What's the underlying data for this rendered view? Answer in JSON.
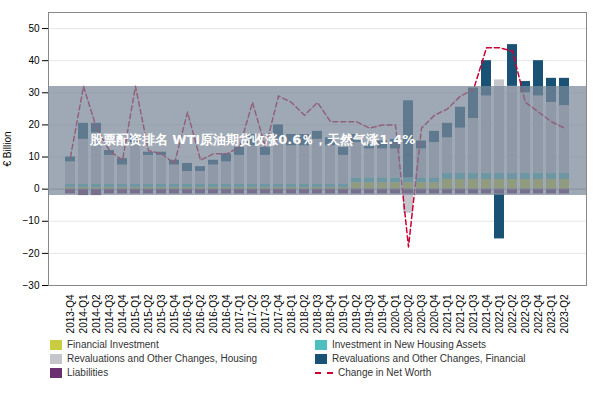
{
  "chart_data": {
    "type": "bar",
    "stacked": true,
    "ylabel": "€ Billion",
    "annotation": "股票配资排名 WTI原油期货收涨0.6％，天然气涨1.4%",
    "categories": [
      "2013-Q4",
      "2014-Q1",
      "2014-Q2",
      "2014-Q3",
      "2014-Q4",
      "2015-Q1",
      "2015-Q2",
      "2015-Q3",
      "2015-Q4",
      "2016-Q1",
      "2016-Q2",
      "2016-Q3",
      "2016-Q4",
      "2017-Q1",
      "2017-Q2",
      "2017-Q3",
      "2017-Q4",
      "2018-Q1",
      "2018-Q2",
      "2018-Q3",
      "2018-Q4",
      "2019-Q1",
      "2019-Q2",
      "2019-Q3",
      "2019-Q4",
      "2020-Q1",
      "2020-Q2",
      "2020-Q3",
      "2020-Q4",
      "2021-Q1",
      "2021-Q2",
      "2021-Q3",
      "2021-Q4",
      "2022-Q1",
      "2022-Q2",
      "2022-Q3",
      "2022-Q4",
      "2023-Q1",
      "2023-Q2"
    ],
    "series": [
      {
        "name": "Financial Investment",
        "type": "bar",
        "color": "#c8cc3f",
        "values": [
          0.5,
          0.5,
          0.5,
          0.5,
          0.5,
          0.5,
          0.5,
          0.5,
          0.5,
          0.5,
          0.5,
          0.5,
          0.5,
          0.5,
          0.5,
          0.5,
          0.5,
          0.5,
          0.5,
          0.5,
          0.5,
          0.5,
          2.0,
          2.0,
          2.0,
          2.0,
          2.0,
          2.0,
          2.0,
          3.0,
          3.0,
          3.0,
          3.0,
          3.0,
          3.0,
          3.0,
          3.0,
          3.0,
          3.0
        ]
      },
      {
        "name": "Investment in New Housing Assets",
        "type": "bar",
        "color": "#4dbfbf",
        "values": [
          1.0,
          1.0,
          1.0,
          1.0,
          1.0,
          1.0,
          1.0,
          1.0,
          1.0,
          1.0,
          1.0,
          1.0,
          1.0,
          1.0,
          1.0,
          1.0,
          1.0,
          1.0,
          1.0,
          1.0,
          1.0,
          1.0,
          1.5,
          1.5,
          1.5,
          1.5,
          1.5,
          1.5,
          1.5,
          2.0,
          2.0,
          2.0,
          2.0,
          2.0,
          2.0,
          2.0,
          2.0,
          2.0,
          2.0
        ]
      },
      {
        "name": "Revaluations and Other Changes, Housing",
        "type": "bar",
        "color": "#c5c5cc",
        "values": [
          7.0,
          14.0,
          16.0,
          9.0,
          6.0,
          13.0,
          9.0,
          9.0,
          6.0,
          4.0,
          4.0,
          6.0,
          7.0,
          9.0,
          12.0,
          9.0,
          14.0,
          12.0,
          12.0,
          14.0,
          12.0,
          9.0,
          11.0,
          9.0,
          9.0,
          9.0,
          -6.0,
          9.0,
          11.0,
          11.0,
          14.0,
          17.0,
          24.0,
          29.0,
          27.0,
          25.0,
          24.0,
          22.0,
          21.0
        ]
      },
      {
        "name": "Revaluations and Other Changes, Financial",
        "type": "bar",
        "color": "#1a5276",
        "values": [
          1.5,
          5.0,
          3.0,
          1.5,
          2.0,
          2.0,
          1.0,
          1.0,
          1.5,
          2.5,
          1.5,
          1.5,
          2.5,
          2.5,
          3.5,
          2.5,
          4.5,
          3.5,
          3.5,
          2.5,
          2.5,
          2.5,
          2.5,
          1.5,
          2.5,
          3.0,
          24.0,
          2.5,
          3.5,
          4.5,
          6.5,
          9.5,
          11.0,
          -14.0,
          13.0,
          3.5,
          11.0,
          7.5,
          8.5
        ]
      },
      {
        "name": "Liabilities",
        "type": "bar",
        "color": "#6b3070",
        "values": [
          -1.5,
          -2.0,
          -2.0,
          -1.5,
          -1.5,
          -1.5,
          -1.5,
          -1.5,
          -1.5,
          -1.5,
          -1.5,
          -1.5,
          -1.5,
          -1.5,
          -1.5,
          -1.5,
          -1.5,
          -1.5,
          -1.5,
          -1.5,
          -1.5,
          -1.5,
          -1.5,
          -1.5,
          -1.5,
          -1.5,
          -1.5,
          -1.5,
          -1.5,
          -1.5,
          -1.5,
          -1.5,
          -1.5,
          -1.5,
          -1.5,
          -1.5,
          -1.5,
          -1.5,
          -1.5
        ]
      },
      {
        "name": "Change in Net Worth",
        "type": "line",
        "line_style": "dashed",
        "color": "#cc0033",
        "values": [
          10.0,
          32.0,
          19.0,
          12.0,
          9.0,
          32.0,
          12.0,
          11.0,
          8.0,
          24.0,
          9.0,
          11.0,
          11.0,
          13.0,
          27.0,
          13.0,
          29.0,
          27.0,
          23.0,
          27.0,
          21.0,
          21.0,
          21.0,
          19.0,
          20.0,
          20.0,
          -18.0,
          19.0,
          23.0,
          25.0,
          29.0,
          31.0,
          44.0,
          44.0,
          43.0,
          27.0,
          24.0,
          21.0,
          19.0
        ]
      }
    ],
    "ylim": [
      -30,
      55
    ],
    "yticks": [
      -30,
      -20,
      -10,
      0,
      10,
      20,
      30,
      40,
      50
    ],
    "grid": true,
    "legend": "bottom"
  }
}
